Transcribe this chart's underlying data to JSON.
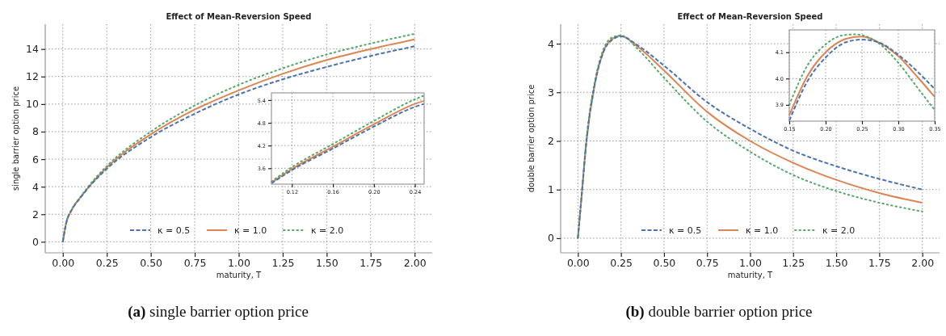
{
  "chart_data": [
    {
      "type": "line",
      "title": "Effect of Mean-Reversion Speed",
      "xlabel": "maturity, T",
      "ylabel": "single barrier option price",
      "annotations": [
        "(a) single barrier option price"
      ],
      "x": [
        0,
        0.02,
        0.05,
        0.1,
        0.15,
        0.25,
        0.5,
        0.75,
        1,
        1.25,
        1.5,
        1.75,
        2
      ],
      "series": [
        {
          "name": "κ = 0.5",
          "color": "#4c72b0",
          "line_style": "dashed",
          "values": [
            0,
            1.4,
            2.3,
            3.2,
            4.0,
            5.3,
            7.6,
            9.3,
            10.7,
            11.8,
            12.7,
            13.5,
            14.2
          ]
        },
        {
          "name": "κ = 1.0",
          "color": "#dd8452",
          "line_style": "solid",
          "values": [
            0,
            1.4,
            2.3,
            3.22,
            4.02,
            5.4,
            7.8,
            9.6,
            11.0,
            12.2,
            13.2,
            14.0,
            14.7
          ]
        },
        {
          "name": "κ = 2.0",
          "color": "#55a868",
          "line_style": "dotted",
          "values": [
            0,
            1.45,
            2.35,
            3.25,
            4.1,
            5.5,
            8.0,
            9.9,
            11.4,
            12.6,
            13.6,
            14.4,
            15.1
          ]
        }
      ],
      "xlim": [
        -0.1,
        2.1
      ],
      "ylim": [
        -0.8,
        15.8
      ],
      "xticks": [
        {
          "value": 0,
          "label": "0.00"
        },
        {
          "value": 0.25,
          "label": "0.25"
        },
        {
          "value": 0.5,
          "label": "0.50"
        },
        {
          "value": 0.75,
          "label": "0.75"
        },
        {
          "value": 1,
          "label": "1.00"
        },
        {
          "value": 1.25,
          "label": "1.25"
        },
        {
          "value": 1.5,
          "label": "1.50"
        },
        {
          "value": 1.75,
          "label": "1.75"
        },
        {
          "value": 2,
          "label": "2.00"
        }
      ],
      "yticks": [
        0,
        2,
        4,
        6,
        8,
        10,
        12,
        14
      ],
      "grid": true,
      "legend": "bottom"
    },
    {
      "type": "line",
      "x": [
        0.1,
        0.12,
        0.16,
        0.2,
        0.24,
        0.249
      ],
      "series": [
        {
          "color": "#4c72b0",
          "line_style": "dashed",
          "values": [
            3.2,
            3.55,
            4.12,
            4.7,
            5.22,
            5.3
          ]
        },
        {
          "color": "#dd8452",
          "line_style": "solid",
          "values": [
            3.22,
            3.58,
            4.17,
            4.76,
            5.3,
            5.38
          ]
        },
        {
          "color": "#55a868",
          "line_style": "dotted",
          "values": [
            3.25,
            3.63,
            4.24,
            4.85,
            5.42,
            5.52
          ]
        }
      ],
      "xlim": [
        0.1,
        0.249
      ],
      "ylim": [
        3.18,
        5.59
      ],
      "xticks": [
        0.12,
        0.16,
        {
          "value": 0.2,
          "label": "0.20"
        },
        0.24
      ],
      "yticks": [
        3.6,
        4.2,
        4.8,
        5.4
      ],
      "grid": true
    },
    {
      "type": "line",
      "title": "Effect of Mean-Reversion Speed",
      "xlabel": "maturity, T",
      "ylabel": "double barrier option price",
      "annotations": [
        "(b) double barrier option price"
      ],
      "x": [
        0,
        0.02,
        0.05,
        0.1,
        0.15,
        0.2,
        0.25,
        0.35,
        0.5,
        0.75,
        1,
        1.25,
        1.5,
        1.75,
        2
      ],
      "series": [
        {
          "name": "κ = 0.5",
          "color": "#4c72b0",
          "line_style": "dashed",
          "values": [
            0,
            0.8,
            2.0,
            3.2,
            3.84,
            4.08,
            4.15,
            3.96,
            3.55,
            2.8,
            2.25,
            1.8,
            1.48,
            1.22,
            1.0
          ]
        },
        {
          "name": "κ = 1.0",
          "color": "#dd8452",
          "line_style": "solid",
          "values": [
            0,
            0.8,
            2.0,
            3.2,
            3.86,
            4.1,
            4.16,
            3.93,
            3.45,
            2.6,
            2.0,
            1.55,
            1.2,
            0.93,
            0.73
          ]
        },
        {
          "name": "κ = 2.0",
          "color": "#55a868",
          "line_style": "dotted",
          "values": [
            0,
            0.8,
            2.05,
            3.25,
            3.9,
            4.13,
            4.17,
            3.88,
            3.3,
            2.4,
            1.78,
            1.3,
            0.97,
            0.73,
            0.55
          ]
        }
      ],
      "xlim": [
        -0.1,
        2.1
      ],
      "ylim": [
        -0.3,
        4.4
      ],
      "xticks": [
        {
          "value": 0,
          "label": "0.00"
        },
        {
          "value": 0.25,
          "label": "0.25"
        },
        {
          "value": 0.5,
          "label": "0.50"
        },
        {
          "value": 0.75,
          "label": "0.75"
        },
        {
          "value": 1,
          "label": "1.00"
        },
        {
          "value": 1.25,
          "label": "1.25"
        },
        {
          "value": 1.5,
          "label": "1.50"
        },
        {
          "value": 1.75,
          "label": "1.75"
        },
        {
          "value": 2,
          "label": "2.00"
        }
      ],
      "yticks": [
        0,
        1,
        2,
        3,
        4
      ],
      "grid": true,
      "legend": "bottom"
    },
    {
      "type": "line",
      "x": [
        0.15,
        0.175,
        0.2,
        0.225,
        0.24,
        0.25,
        0.275,
        0.3,
        0.325,
        0.35
      ],
      "series": [
        {
          "color": "#4c72b0",
          "line_style": "dashed",
          "values": [
            3.84,
            3.99,
            4.08,
            4.135,
            4.146,
            4.148,
            4.135,
            4.09,
            4.03,
            3.96
          ]
        },
        {
          "color": "#dd8452",
          "line_style": "solid",
          "values": [
            3.86,
            4.01,
            4.1,
            4.148,
            4.158,
            4.16,
            4.135,
            4.085,
            4.01,
            3.93
          ]
        },
        {
          "color": "#55a868",
          "line_style": "dotted",
          "values": [
            3.9,
            4.05,
            4.13,
            4.165,
            4.168,
            4.165,
            4.13,
            4.06,
            3.97,
            3.88
          ]
        }
      ],
      "xlim": [
        0.15,
        0.35
      ],
      "ylim": [
        3.838,
        4.185
      ],
      "xticks": [
        0.15,
        {
          "value": 0.2,
          "label": "0.20"
        },
        0.25,
        {
          "value": 0.3,
          "label": "0.30"
        },
        0.35
      ],
      "yticks": [
        3.9,
        {
          "value": 4,
          "label": "4.0"
        },
        4.1
      ],
      "grid": true
    }
  ]
}
